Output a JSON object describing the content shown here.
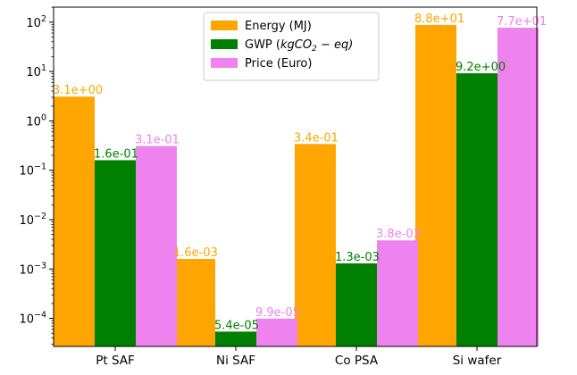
{
  "chart_data": {
    "type": "bar",
    "scale": "log",
    "categories": [
      "Pt SAF",
      "Ni SAF",
      "Co PSA",
      "Si wafer"
    ],
    "ylim": [
      3e-05,
      200
    ],
    "y_ticks": [
      {
        "value": 0.0001,
        "base": "10",
        "exp": "−4"
      },
      {
        "value": 0.001,
        "base": "10",
        "exp": "−3"
      },
      {
        "value": 0.01,
        "base": "10",
        "exp": "−2"
      },
      {
        "value": 0.1,
        "base": "10",
        "exp": "−1"
      },
      {
        "value": 1,
        "base": "10",
        "exp": "0"
      },
      {
        "value": 10,
        "base": "10",
        "exp": "1"
      },
      {
        "value": 100,
        "base": "10",
        "exp": "2"
      }
    ],
    "series": [
      {
        "name": "Energy (MJ)",
        "color": "#ffa500",
        "values": [
          3.1,
          0.0016,
          0.34,
          88
        ],
        "labels": [
          "3.1e+00",
          "1.6e-03",
          "3.4e-01",
          "8.8e+01"
        ]
      },
      {
        "name": "GWP (",
        "name_math": "kgCO",
        "name_sub": "2",
        "name_tail": " − eq)",
        "color": "#008000",
        "values": [
          0.16,
          5.4e-05,
          0.0013,
          9.2
        ],
        "labels": [
          "1.6e-01",
          "5.4e-05",
          "1.3e-03",
          "9.2e+00"
        ]
      },
      {
        "name": "Price (Euro)",
        "color": "#ee82ee",
        "values": [
          0.31,
          9.9e-05,
          0.0038,
          77
        ],
        "labels": [
          "3.1e-01",
          "9.9e-05",
          "3.8e-03",
          "7.7e+01"
        ]
      }
    ],
    "legend_position": "top-center",
    "grid": false
  }
}
